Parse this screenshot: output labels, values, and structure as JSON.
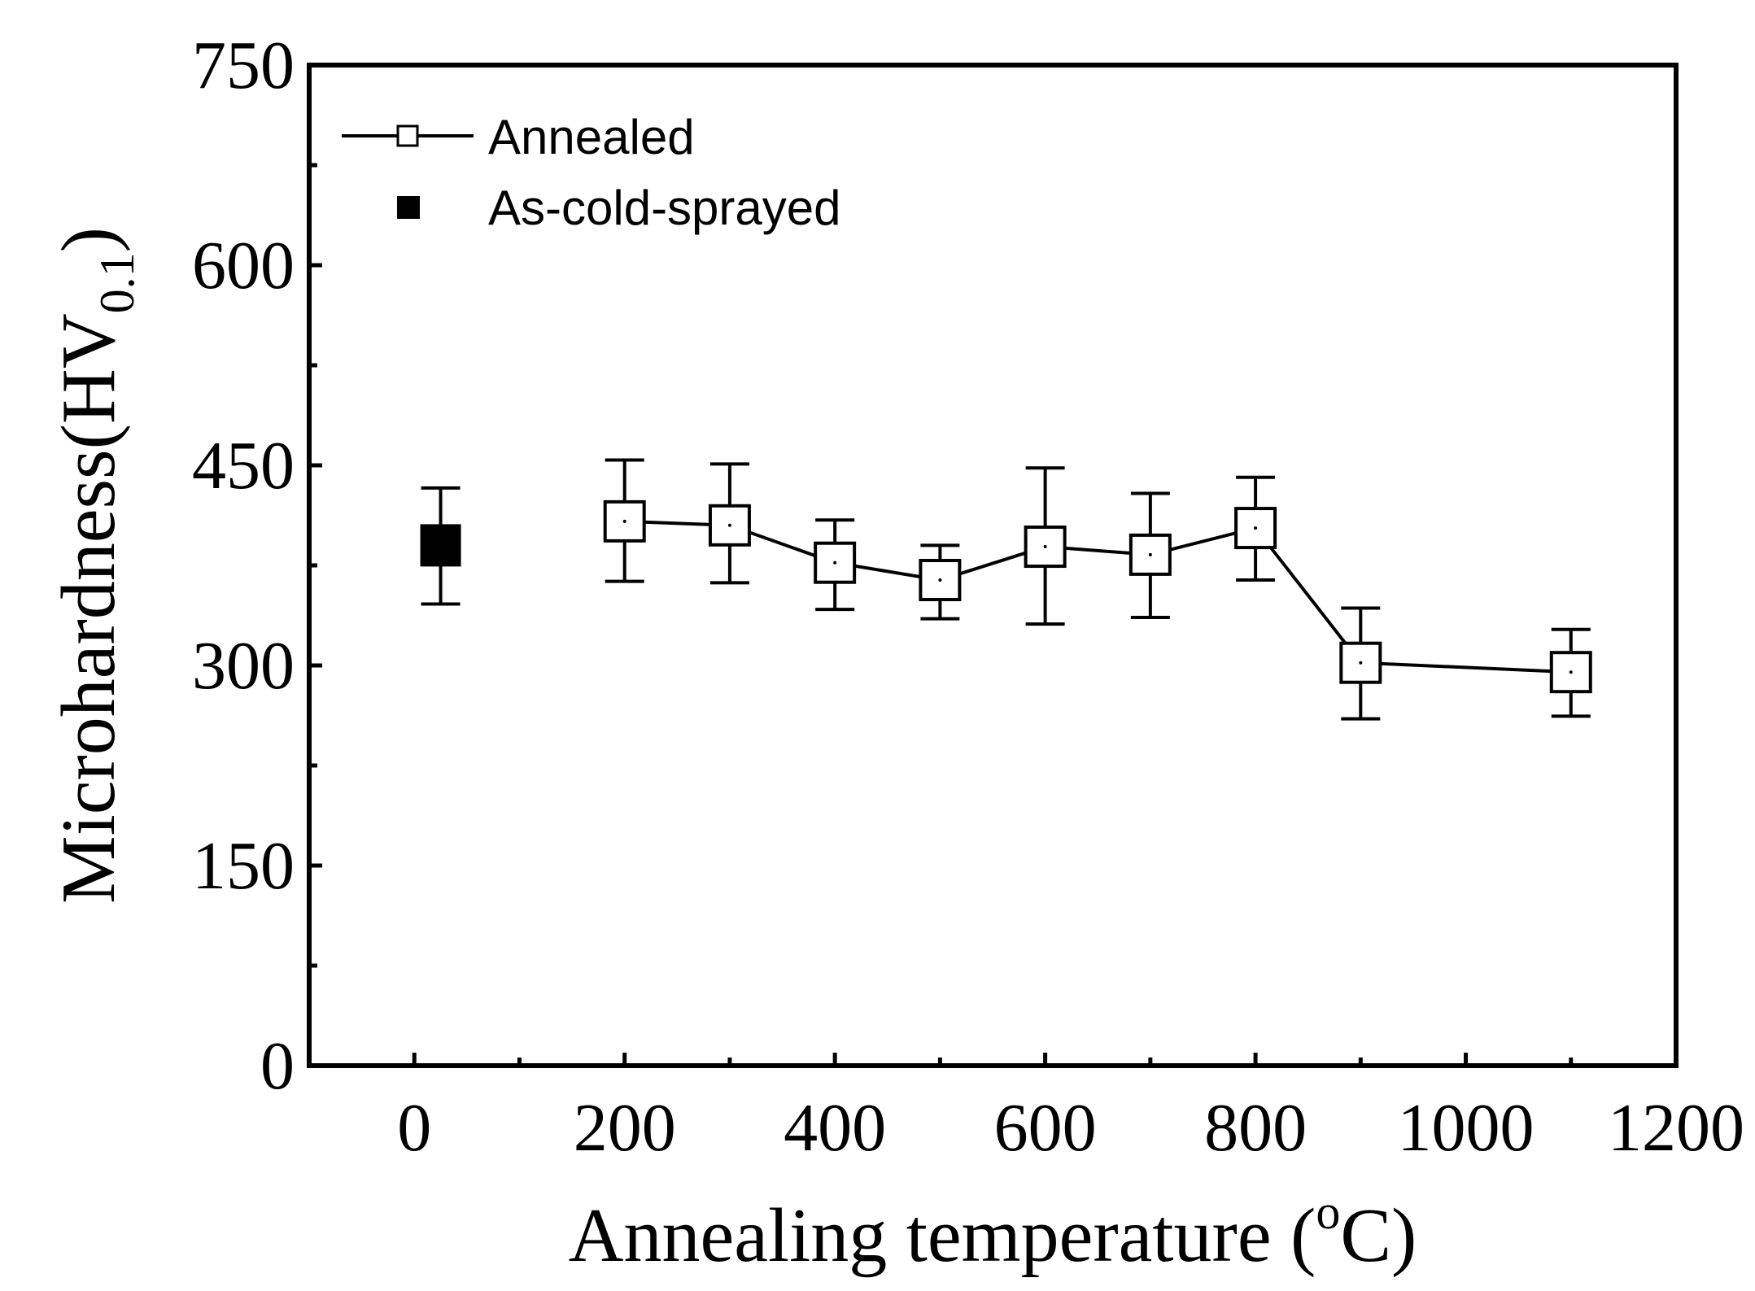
{
  "chart_data": {
    "type": "scatter",
    "title": "",
    "xlabel": "Annealing temperature (",
    "xlabel_unit_sup": "o",
    "xlabel_unit": "C)",
    "ylabel": "Microhardness(HV",
    "ylabel_sub": "0.1",
    "ylabel_close": ")",
    "xlim": [
      -100,
      1200
    ],
    "ylim": [
      0,
      750
    ],
    "xticks": [
      0,
      200,
      400,
      600,
      800,
      1000,
      1200
    ],
    "xticks_minor": [
      100,
      300,
      500,
      700,
      900,
      1100
    ],
    "yticks": [
      0,
      150,
      300,
      450,
      600,
      750
    ],
    "yticks_minor": [
      75,
      225,
      375,
      525,
      675
    ],
    "legend_position": "top-left",
    "series": [
      {
        "name": "Annealed",
        "marker": "open-square",
        "line": true,
        "x": [
          200,
          300,
          400,
          500,
          600,
          700,
          800,
          900,
          1100
        ],
        "y": [
          408,
          405,
          377,
          364,
          389,
          383,
          403,
          302,
          295
        ],
        "err_lower": [
          363,
          362,
          342,
          335,
          331,
          336,
          364,
          260,
          262
        ],
        "err_upper": [
          454,
          451,
          409,
          390,
          448,
          429,
          441,
          343,
          327
        ]
      },
      {
        "name": "As-cold-sprayed",
        "marker": "filled-square",
        "line": false,
        "x": [
          25
        ],
        "y": [
          390
        ],
        "err_lower": [
          346
        ],
        "err_upper": [
          433
        ]
      }
    ]
  }
}
